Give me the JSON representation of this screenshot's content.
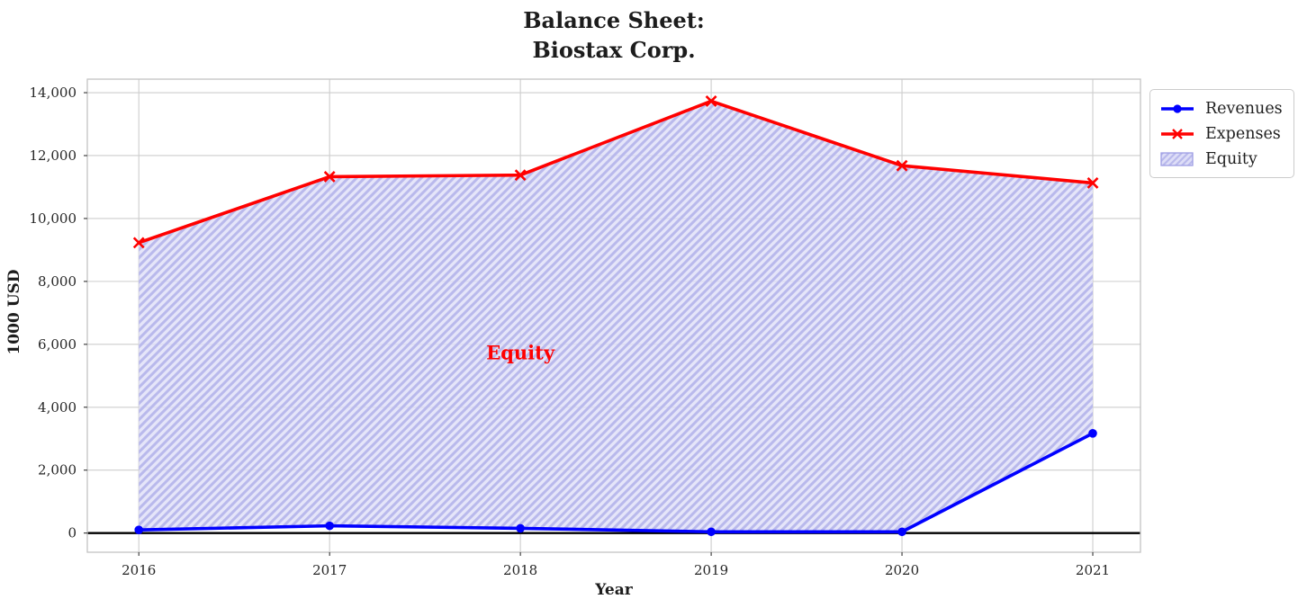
{
  "chart_data": {
    "type": "line",
    "title_lines": [
      "Balance Sheet:",
      "Biostax Corp."
    ],
    "xlabel": "Year",
    "ylabel": "1000 USD",
    "x": [
      2016,
      2017,
      2018,
      2019,
      2020,
      2021
    ],
    "series": [
      {
        "name": "Revenues",
        "color": "#0000ff",
        "marker": "circle",
        "values": [
          100,
          230,
          150,
          40,
          40,
          3170
        ]
      },
      {
        "name": "Expenses",
        "color": "#ff0000",
        "marker": "x",
        "values": [
          9230,
          11330,
          11380,
          13730,
          11680,
          11130
        ]
      }
    ],
    "area": {
      "name": "Equity",
      "between": [
        "Revenues",
        "Expenses"
      ]
    },
    "annotation": {
      "text": "Equity",
      "x": 2018,
      "y": 5750,
      "color": "#ff0000"
    },
    "xlim": [
      2015.73,
      2021.25
    ],
    "ylim": [
      -610,
      14430
    ],
    "xticks": [
      2016,
      2017,
      2018,
      2019,
      2020,
      2021
    ],
    "xtick_labels": [
      "2016",
      "2017",
      "2018",
      "2019",
      "2020",
      "2021"
    ],
    "yticks": [
      0,
      2000,
      4000,
      6000,
      8000,
      10000,
      12000,
      14000
    ],
    "ytick_labels": [
      "0",
      "2,000",
      "4,000",
      "6,000",
      "8,000",
      "10,000",
      "12,000",
      "14,000"
    ],
    "grid": true,
    "zero_line": 0,
    "legend": {
      "position": "outside-top-right",
      "entries": [
        "Revenues",
        "Expenses",
        "Equity"
      ]
    },
    "colors": {
      "revenues": "#0000ff",
      "expenses": "#ff0000",
      "equity_fill": "#dedef7",
      "equity_hatch": "#b9b9ec",
      "equity_border": "#9d9de4",
      "grid": "#cdcdcd",
      "plot_border": "#c3c3c3",
      "tick": "#333333",
      "text": "#262626",
      "zero_line": "#000000"
    }
  }
}
